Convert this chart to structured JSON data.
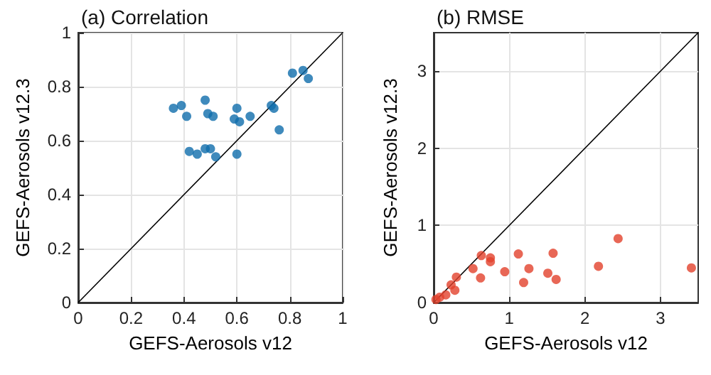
{
  "chart_data": [
    {
      "type": "scatter",
      "title": "(a) Correlation",
      "xlabel": "GEFS-Aerosols v12",
      "ylabel": "GEFS-Aerosols v12.3",
      "xlim": [
        0,
        1
      ],
      "ylim": [
        0,
        1
      ],
      "xticks": [
        0,
        0.2,
        0.4,
        0.6,
        0.8,
        1
      ],
      "yticks": [
        0,
        0.2,
        0.4,
        0.6,
        0.8,
        1
      ],
      "grid": true,
      "marker": "circle",
      "series": [
        {
          "color": "#0f6dab",
          "x": [
            0.36,
            0.39,
            0.41,
            0.48,
            0.49,
            0.51,
            0.6,
            0.59,
            0.61,
            0.65,
            0.73,
            0.74,
            0.76,
            0.81,
            0.85,
            0.87,
            0.42,
            0.45,
            0.48,
            0.5,
            0.52,
            0.6
          ],
          "values": [
            0.72,
            0.73,
            0.69,
            0.75,
            0.7,
            0.69,
            0.72,
            0.68,
            0.67,
            0.69,
            0.73,
            0.72,
            0.64,
            0.85,
            0.86,
            0.83,
            0.56,
            0.55,
            0.57,
            0.57,
            0.54,
            0.55
          ]
        },
        {
          "type": "line",
          "color": "#000000",
          "marker": "none",
          "line_style": "solid",
          "x": [
            0,
            1
          ],
          "values": [
            0,
            1
          ]
        }
      ]
    },
    {
      "type": "scatter",
      "title": "(b) RMSE",
      "xlabel": "GEFS-Aerosols v12",
      "ylabel": "GEFS-Aerosols v12.3",
      "xlim": [
        0,
        3.5
      ],
      "ylim": [
        0,
        3.5
      ],
      "xticks": [
        0,
        1,
        2,
        3
      ],
      "yticks": [
        0,
        1,
        2,
        3
      ],
      "grid": true,
      "marker": "circle",
      "series": [
        {
          "color": "#e2412c",
          "x": [
            0.03,
            0.08,
            0.16,
            0.23,
            0.28,
            0.3,
            0.52,
            0.63,
            0.62,
            0.75,
            0.75,
            0.94,
            1.12,
            1.19,
            1.26,
            1.51,
            1.58,
            1.62,
            2.18,
            2.44,
            3.41
          ],
          "values": [
            0.04,
            0.07,
            0.1,
            0.23,
            0.16,
            0.33,
            0.44,
            0.61,
            0.32,
            0.58,
            0.53,
            0.4,
            0.63,
            0.26,
            0.44,
            0.38,
            0.64,
            0.3,
            0.47,
            0.83,
            0.45
          ]
        },
        {
          "type": "line",
          "color": "#000000",
          "marker": "none",
          "line_style": "solid",
          "x": [
            0,
            3.5
          ],
          "values": [
            0,
            3.5
          ]
        }
      ]
    }
  ]
}
